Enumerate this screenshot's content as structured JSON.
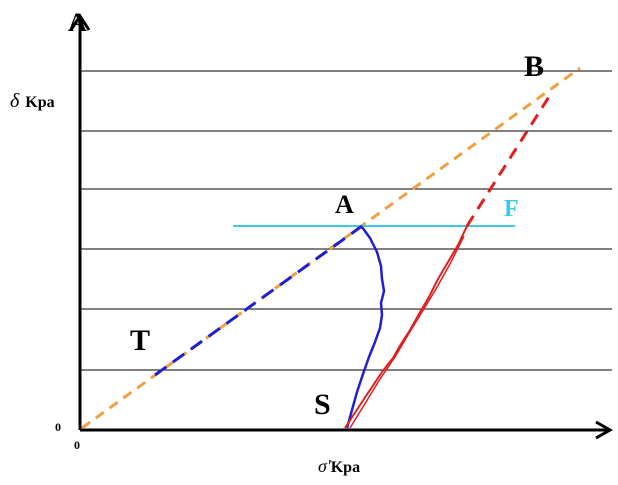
{
  "axes": {
    "top_label": "A",
    "y_symbol": "δ",
    "y_unit": "Kpa",
    "x_symbol": "σ'",
    "x_unit": "Kpa",
    "origin_y": "0",
    "origin_x": "0"
  },
  "points": {
    "B": "B",
    "A": "A",
    "F": "F",
    "T": "T",
    "S": "S"
  },
  "colors": {
    "axis": "#000000",
    "grid": "#000000",
    "failure_envelope": "#f0a040",
    "total_stress_path": "#2020d0",
    "effective_path": "#e02020",
    "f_line": "#40c8e8"
  }
}
